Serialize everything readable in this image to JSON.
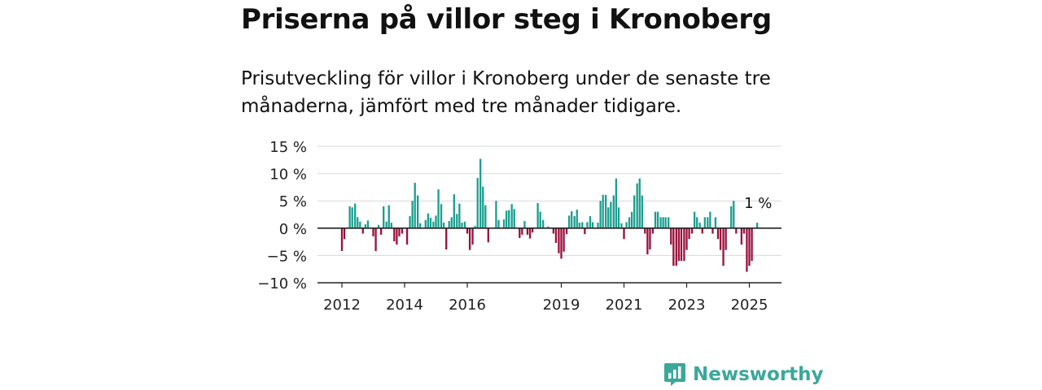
{
  "title": "Priserna på villor steg i Kronoberg",
  "subtitle": "Prisutveckling för villor i Kronoberg under de senaste tre månaderna, jämfört med tre månader tidigare.",
  "brand": {
    "name": "Newsworthy"
  },
  "colors": {
    "positive": "#1a9e8f",
    "negative": "#9b0f3c",
    "grid": "#d9d9d9",
    "axis": "#222222",
    "brand": "#3aa89a"
  },
  "chart_data": {
    "type": "bar",
    "ylim": [
      -10,
      15
    ],
    "yticks": [
      {
        "value": 15,
        "label": "15 %"
      },
      {
        "value": 10,
        "label": "10 %"
      },
      {
        "value": 5,
        "label": "5 %"
      },
      {
        "value": 0,
        "label": "0 %"
      },
      {
        "value": -5,
        "label": "−5 %"
      },
      {
        "value": -10,
        "label": "−10 %"
      }
    ],
    "xticks": [
      {
        "x": 2012.0,
        "label": "2012"
      },
      {
        "x": 2014.0,
        "label": "2014"
      },
      {
        "x": 2016.0,
        "label": "2016"
      },
      {
        "x": 2019.0,
        "label": "2019"
      },
      {
        "x": 2021.0,
        "label": "2021"
      },
      {
        "x": 2023.0,
        "label": "2023"
      },
      {
        "x": 2025.0,
        "label": "2025"
      }
    ],
    "xlim": [
      2011.58,
      2025.95
    ],
    "annotation": {
      "x": 2025.25,
      "value": 1,
      "label": "1 %"
    },
    "series": [
      {
        "values": [
          [
            2012.0,
            -4.2
          ],
          [
            2012.08,
            -2.0
          ],
          [
            2012.25,
            4.0
          ],
          [
            2012.33,
            3.8
          ],
          [
            2012.42,
            4.5
          ],
          [
            2012.5,
            2.0
          ],
          [
            2012.58,
            1.2
          ],
          [
            2012.67,
            -1.0
          ],
          [
            2012.75,
            0.7
          ],
          [
            2012.83,
            1.4
          ],
          [
            2013.0,
            -1.5
          ],
          [
            2013.08,
            -4.2
          ],
          [
            2013.17,
            0.6
          ],
          [
            2013.25,
            -1.2
          ],
          [
            2013.33,
            4.0
          ],
          [
            2013.42,
            1.2
          ],
          [
            2013.5,
            4.2
          ],
          [
            2013.58,
            1.0
          ],
          [
            2013.67,
            -2.4
          ],
          [
            2013.75,
            -3.0
          ],
          [
            2013.83,
            -1.5
          ],
          [
            2013.92,
            -1.0
          ],
          [
            2014.08,
            -3.0
          ],
          [
            2014.17,
            2.2
          ],
          [
            2014.25,
            5.0
          ],
          [
            2014.33,
            8.3
          ],
          [
            2014.42,
            6.0
          ],
          [
            2014.5,
            0.9
          ],
          [
            2014.67,
            1.5
          ],
          [
            2014.75,
            2.7
          ],
          [
            2014.83,
            1.9
          ],
          [
            2014.92,
            1.2
          ],
          [
            2015.0,
            2.3
          ],
          [
            2015.08,
            7.1
          ],
          [
            2015.17,
            4.4
          ],
          [
            2015.25,
            1.0
          ],
          [
            2015.33,
            -3.9
          ],
          [
            2015.42,
            1.3
          ],
          [
            2015.5,
            2.0
          ],
          [
            2015.58,
            6.2
          ],
          [
            2015.67,
            2.6
          ],
          [
            2015.75,
            4.5
          ],
          [
            2015.83,
            1.0
          ],
          [
            2015.92,
            1.2
          ],
          [
            2016.0,
            -1.0
          ],
          [
            2016.08,
            -4.0
          ],
          [
            2016.17,
            -3.0
          ],
          [
            2016.25,
            0.4
          ],
          [
            2016.33,
            9.2
          ],
          [
            2016.42,
            12.7
          ],
          [
            2016.5,
            7.6
          ],
          [
            2016.58,
            4.2
          ],
          [
            2016.67,
            -2.6
          ],
          [
            2016.92,
            5.0
          ],
          [
            2017.0,
            1.5
          ],
          [
            2017.17,
            1.6
          ],
          [
            2017.25,
            3.2
          ],
          [
            2017.33,
            3.3
          ],
          [
            2017.42,
            4.4
          ],
          [
            2017.5,
            3.5
          ],
          [
            2017.67,
            -1.8
          ],
          [
            2017.75,
            -1.2
          ],
          [
            2017.83,
            1.3
          ],
          [
            2017.92,
            -1.2
          ],
          [
            2018.0,
            -1.9
          ],
          [
            2018.08,
            -0.8
          ],
          [
            2018.25,
            4.6
          ],
          [
            2018.33,
            3.0
          ],
          [
            2018.42,
            1.5
          ],
          [
            2018.58,
            0.3
          ],
          [
            2018.75,
            -1.0
          ],
          [
            2018.83,
            -2.7
          ],
          [
            2018.92,
            -4.6
          ],
          [
            2019.0,
            -5.6
          ],
          [
            2019.08,
            -4.3
          ],
          [
            2019.17,
            -1.1
          ],
          [
            2019.25,
            2.3
          ],
          [
            2019.33,
            3.1
          ],
          [
            2019.42,
            2.2
          ],
          [
            2019.5,
            3.4
          ],
          [
            2019.58,
            1.0
          ],
          [
            2019.67,
            1.1
          ],
          [
            2019.75,
            -1.1
          ],
          [
            2019.83,
            1.1
          ],
          [
            2019.92,
            2.2
          ],
          [
            2020.0,
            1.1
          ],
          [
            2020.17,
            1.0
          ],
          [
            2020.25,
            5.0
          ],
          [
            2020.33,
            6.1
          ],
          [
            2020.42,
            6.1
          ],
          [
            2020.5,
            3.8
          ],
          [
            2020.58,
            4.8
          ],
          [
            2020.67,
            6.0
          ],
          [
            2020.75,
            9.1
          ],
          [
            2020.83,
            3.8
          ],
          [
            2020.92,
            0.9
          ],
          [
            2021.0,
            -2.0
          ],
          [
            2021.08,
            1.1
          ],
          [
            2021.17,
            2.0
          ],
          [
            2021.25,
            3.0
          ],
          [
            2021.33,
            6.0
          ],
          [
            2021.42,
            8.2
          ],
          [
            2021.5,
            9.1
          ],
          [
            2021.58,
            6.0
          ],
          [
            2021.67,
            -1.0
          ],
          [
            2021.75,
            -4.8
          ],
          [
            2021.83,
            -3.9
          ],
          [
            2021.92,
            -1.0
          ],
          [
            2022.0,
            3.0
          ],
          [
            2022.08,
            3.0
          ],
          [
            2022.17,
            2.0
          ],
          [
            2022.25,
            2.0
          ],
          [
            2022.33,
            2.0
          ],
          [
            2022.42,
            2.0
          ],
          [
            2022.5,
            -3.0
          ],
          [
            2022.58,
            -6.9
          ],
          [
            2022.67,
            -6.9
          ],
          [
            2022.75,
            -6.0
          ],
          [
            2022.83,
            -6.0
          ],
          [
            2022.92,
            -6.0
          ],
          [
            2023.0,
            -4.0
          ],
          [
            2023.08,
            -2.0
          ],
          [
            2023.17,
            -1.0
          ],
          [
            2023.25,
            3.0
          ],
          [
            2023.33,
            2.0
          ],
          [
            2023.42,
            1.0
          ],
          [
            2023.5,
            -1.0
          ],
          [
            2023.58,
            2.0
          ],
          [
            2023.67,
            2.0
          ],
          [
            2023.75,
            3.0
          ],
          [
            2023.83,
            -1.0
          ],
          [
            2023.92,
            2.0
          ],
          [
            2024.0,
            -2.0
          ],
          [
            2024.08,
            -4.0
          ],
          [
            2024.17,
            -6.9
          ],
          [
            2024.25,
            -4.0
          ],
          [
            2024.42,
            4.0
          ],
          [
            2024.5,
            5.0
          ],
          [
            2024.58,
            -1.0
          ],
          [
            2024.75,
            -3.0
          ],
          [
            2024.83,
            -1.0
          ],
          [
            2024.92,
            -8.0
          ],
          [
            2025.0,
            -6.9
          ],
          [
            2025.08,
            -6.0
          ],
          [
            2025.25,
            1.0
          ]
        ]
      }
    ]
  }
}
